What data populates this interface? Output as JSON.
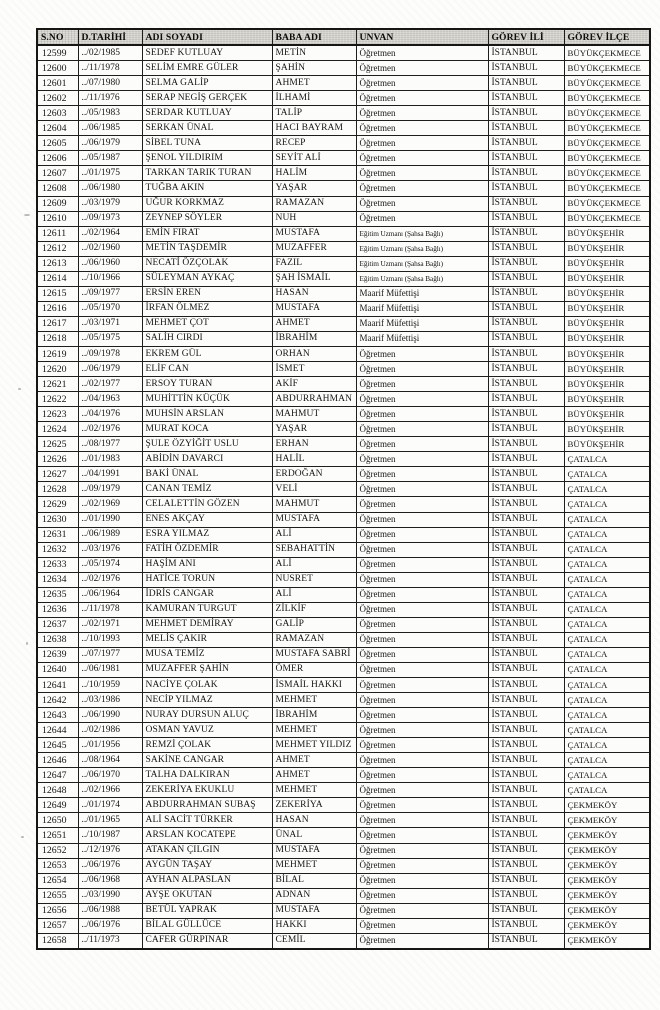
{
  "table": {
    "columns": [
      "S.NO",
      "D.TARİHİ",
      "ADI SOYADI",
      "BABA ADI",
      "UNVAN",
      "GÖREV İLİ",
      "GÖREV İLÇE"
    ],
    "rows": [
      [
        "12599",
        "../02/1985",
        "SEDEF KUTLUAY",
        "METİN",
        "Öğretmen",
        "İSTANBUL",
        "BÜYÜKÇEKMECE"
      ],
      [
        "12600",
        "../11/1978",
        "SELİM EMRE GÜLER",
        "ŞAHİN",
        "Öğretmen",
        "İSTANBUL",
        "BÜYÜKÇEKMECE"
      ],
      [
        "12601",
        "../07/1980",
        "SELMA GALİP",
        "AHMET",
        "Öğretmen",
        "İSTANBUL",
        "BÜYÜKÇEKMECE"
      ],
      [
        "12602",
        "../11/1976",
        "SERAP NEGİŞ GERÇEK",
        "İLHAMİ",
        "Öğretmen",
        "İSTANBUL",
        "BÜYÜKÇEKMECE"
      ],
      [
        "12603",
        "../05/1983",
        "SERDAR KUTLUAY",
        "TALİP",
        "Öğretmen",
        "İSTANBUL",
        "BÜYÜKÇEKMECE"
      ],
      [
        "12604",
        "../06/1985",
        "SERKAN ÜNAL",
        "HACI BAYRAM",
        "Öğretmen",
        "İSTANBUL",
        "BÜYÜKÇEKMECE"
      ],
      [
        "12605",
        "../06/1979",
        "SİBEL TUNA",
        "RECEP",
        "Öğretmen",
        "İSTANBUL",
        "BÜYÜKÇEKMECE"
      ],
      [
        "12606",
        "../05/1987",
        "ŞENOL YILDIRIM",
        "SEYİT ALİ",
        "Öğretmen",
        "İSTANBUL",
        "BÜYÜKÇEKMECE"
      ],
      [
        "12607",
        "../01/1975",
        "TARKAN TARIK TURAN",
        "HALİM",
        "Öğretmen",
        "İSTANBUL",
        "BÜYÜKÇEKMECE"
      ],
      [
        "12608",
        "../06/1980",
        "TUĞBA AKIN",
        "YAŞAR",
        "Öğretmen",
        "İSTANBUL",
        "BÜYÜKÇEKMECE"
      ],
      [
        "12609",
        "../03/1979",
        "UĞUR KORKMAZ",
        "RAMAZAN",
        "Öğretmen",
        "İSTANBUL",
        "BÜYÜKÇEKMECE"
      ],
      [
        "12610",
        "../09/1973",
        "ZEYNEP SÖYLER",
        "NUH",
        "Öğretmen",
        "İSTANBUL",
        "BÜYÜKÇEKMECE"
      ],
      [
        "12611",
        "../02/1964",
        "EMİN FIRAT",
        "MUSTAFA",
        "Eğitim Uzmanı (Şahsa Bağlı)",
        "İSTANBUL",
        "BÜYÜKŞEHİR"
      ],
      [
        "12612",
        "../02/1960",
        "METİN TAŞDEMİR",
        "MUZAFFER",
        "Eğitim Uzmanı (Şahsa Bağlı)",
        "İSTANBUL",
        "BÜYÜKŞEHİR"
      ],
      [
        "12613",
        "../06/1960",
        "NECATİ ÖZÇOLAK",
        "FAZIL",
        "Eğitim Uzmanı (Şahsa Bağlı)",
        "İSTANBUL",
        "BÜYÜKŞEHİR"
      ],
      [
        "12614",
        "../10/1966",
        "SÜLEYMAN AYKAÇ",
        "ŞAH İSMAİL",
        "Eğitim Uzmanı (Şahsa Bağlı)",
        "İSTANBUL",
        "BÜYÜKŞEHİR"
      ],
      [
        "12615",
        "../09/1977",
        "ERSİN EREN",
        "HASAN",
        "Maarif Müfettişi",
        "İSTANBUL",
        "BÜYÜKŞEHİR"
      ],
      [
        "12616",
        "../05/1970",
        "İRFAN ÖLMEZ",
        "MUSTAFA",
        "Maarif Müfettişi",
        "İSTANBUL",
        "BÜYÜKŞEHİR"
      ],
      [
        "12617",
        "../03/1971",
        "MEHMET ÇOT",
        "AHMET",
        "Maarif Müfettişi",
        "İSTANBUL",
        "BÜYÜKŞEHİR"
      ],
      [
        "12618",
        "../05/1975",
        "SALİH CIRDI",
        "İBRAHİM",
        "Maarif Müfettişi",
        "İSTANBUL",
        "BÜYÜKŞEHİR"
      ],
      [
        "12619",
        "../09/1978",
        "EKREM GÜL",
        "ORHAN",
        "Öğretmen",
        "İSTANBUL",
        "BÜYÜKŞEHİR"
      ],
      [
        "12620",
        "../06/1979",
        "ELİF CAN",
        "İSMET",
        "Öğretmen",
        "İSTANBUL",
        "BÜYÜKŞEHİR"
      ],
      [
        "12621",
        "../02/1977",
        "ERSOY TURAN",
        "AKİF",
        "Öğretmen",
        "İSTANBUL",
        "BÜYÜKŞEHİR"
      ],
      [
        "12622",
        "../04/1963",
        "MUHİTTİN KÜÇÜK",
        "ABDURRAHMAN",
        "Öğretmen",
        "İSTANBUL",
        "BÜYÜKŞEHİR"
      ],
      [
        "12623",
        "../04/1976",
        "MUHSİN ARSLAN",
        "MAHMUT",
        "Öğretmen",
        "İSTANBUL",
        "BÜYÜKŞEHİR"
      ],
      [
        "12624",
        "../02/1976",
        "MURAT KOCA",
        "YAŞAR",
        "Öğretmen",
        "İSTANBUL",
        "BÜYÜKŞEHİR"
      ],
      [
        "12625",
        "../08/1977",
        "ŞULE ÖZYİĞİT USLU",
        "ERHAN",
        "Öğretmen",
        "İSTANBUL",
        "BÜYÜKŞEHİR"
      ],
      [
        "12626",
        "../01/1983",
        "ABİDİN DAVARCI",
        "HALİL",
        "Öğretmen",
        "İSTANBUL",
        "ÇATALCA"
      ],
      [
        "12627",
        "../04/1991",
        "BAKİ ÜNAL",
        "ERDOĞAN",
        "Öğretmen",
        "İSTANBUL",
        "ÇATALCA"
      ],
      [
        "12628",
        "../09/1979",
        "CANAN TEMİZ",
        "VELİ",
        "Öğretmen",
        "İSTANBUL",
        "ÇATALCA"
      ],
      [
        "12629",
        "../02/1969",
        "CELALETTİN GÖZEN",
        "MAHMUT",
        "Öğretmen",
        "İSTANBUL",
        "ÇATALCA"
      ],
      [
        "12630",
        "../01/1990",
        "ENES AKÇAY",
        "MUSTAFA",
        "Öğretmen",
        "İSTANBUL",
        "ÇATALCA"
      ],
      [
        "12631",
        "../06/1989",
        "ESRA YILMAZ",
        "ALİ",
        "Öğretmen",
        "İSTANBUL",
        "ÇATALCA"
      ],
      [
        "12632",
        "../03/1976",
        "FATİH ÖZDEMİR",
        "SEBAHATTİN",
        "Öğretmen",
        "İSTANBUL",
        "ÇATALCA"
      ],
      [
        "12633",
        "../05/1974",
        "HAŞİM ANI",
        "ALİ",
        "Öğretmen",
        "İSTANBUL",
        "ÇATALCA"
      ],
      [
        "12634",
        "../02/1976",
        "HATİCE TORUN",
        "NUSRET",
        "Öğretmen",
        "İSTANBUL",
        "ÇATALCA"
      ],
      [
        "12635",
        "../06/1964",
        "İDRİS CANGAR",
        "ALİ",
        "Öğretmen",
        "İSTANBUL",
        "ÇATALCA"
      ],
      [
        "12636",
        "../11/1978",
        "KAMURAN TURGUT",
        "ZİLKİF",
        "Öğretmen",
        "İSTANBUL",
        "ÇATALCA"
      ],
      [
        "12637",
        "../02/1971",
        "MEHMET DEMİRAY",
        "GALİP",
        "Öğretmen",
        "İSTANBUL",
        "ÇATALCA"
      ],
      [
        "12638",
        "../10/1993",
        "MELİS ÇAKIR",
        "RAMAZAN",
        "Öğretmen",
        "İSTANBUL",
        "ÇATALCA"
      ],
      [
        "12639",
        "../07/1977",
        "MUSA TEMİZ",
        "MUSTAFA SABRİ",
        "Öğretmen",
        "İSTANBUL",
        "ÇATALCA"
      ],
      [
        "12640",
        "../06/1981",
        "MUZAFFER ŞAHİN",
        "ÖMER",
        "Öğretmen",
        "İSTANBUL",
        "ÇATALCA"
      ],
      [
        "12641",
        "../10/1959",
        "NACİYE ÇOLAK",
        "İSMAİL HAKKI",
        "Öğretmen",
        "İSTANBUL",
        "ÇATALCA"
      ],
      [
        "12642",
        "../03/1986",
        "NECİP YILMAZ",
        "MEHMET",
        "Öğretmen",
        "İSTANBUL",
        "ÇATALCA"
      ],
      [
        "12643",
        "../06/1990",
        "NURAY DURSUN ALUÇ",
        "İBRAHİM",
        "Öğretmen",
        "İSTANBUL",
        "ÇATALCA"
      ],
      [
        "12644",
        "../02/1986",
        "OSMAN YAVUZ",
        "MEHMET",
        "Öğretmen",
        "İSTANBUL",
        "ÇATALCA"
      ],
      [
        "12645",
        "../01/1956",
        "REMZİ ÇOLAK",
        "MEHMET YILDIZ",
        "Öğretmen",
        "İSTANBUL",
        "ÇATALCA"
      ],
      [
        "12646",
        "../08/1964",
        "SAKİNE CANGAR",
        "AHMET",
        "Öğretmen",
        "İSTANBUL",
        "ÇATALCA"
      ],
      [
        "12647",
        "../06/1970",
        "TALHA DALKIRAN",
        "AHMET",
        "Öğretmen",
        "İSTANBUL",
        "ÇATALCA"
      ],
      [
        "12648",
        "../02/1966",
        "ZEKERİYA EKUKLU",
        "MEHMET",
        "Öğretmen",
        "İSTANBUL",
        "ÇATALCA"
      ],
      [
        "12649",
        "../01/1974",
        "ABDURRAHMAN SUBAŞ",
        "ZEKERİYA",
        "Öğretmen",
        "İSTANBUL",
        "ÇEKMEKÖY"
      ],
      [
        "12650",
        "../01/1965",
        "ALİ SACİT TÜRKER",
        "HASAN",
        "Öğretmen",
        "İSTANBUL",
        "ÇEKMEKÖY"
      ],
      [
        "12651",
        "../10/1987",
        "ARSLAN KOCATEPE",
        "ÜNAL",
        "Öğretmen",
        "İSTANBUL",
        "ÇEKMEKÖY"
      ],
      [
        "12652",
        "../12/1976",
        "ATAKAN ÇILGIN",
        "MUSTAFA",
        "Öğretmen",
        "İSTANBUL",
        "ÇEKMEKÖY"
      ],
      [
        "12653",
        "../06/1976",
        "AYGÜN TAŞAY",
        "MEHMET",
        "Öğretmen",
        "İSTANBUL",
        "ÇEKMEKÖY"
      ],
      [
        "12654",
        "../06/1968",
        "AYHAN ALPASLAN",
        "BİLAL",
        "Öğretmen",
        "İSTANBUL",
        "ÇEKMEKÖY"
      ],
      [
        "12655",
        "../03/1990",
        "AYŞE OKUTAN",
        "ADNAN",
        "Öğretmen",
        "İSTANBUL",
        "ÇEKMEKÖY"
      ],
      [
        "12656",
        "../06/1988",
        "BETÜL YAPRAK",
        "MUSTAFA",
        "Öğretmen",
        "İSTANBUL",
        "ÇEKMEKÖY"
      ],
      [
        "12657",
        "../06/1976",
        "BİLAL GÜLLÜCE",
        "HAKKI",
        "Öğretmen",
        "İSTANBUL",
        "ÇEKMEKÖY"
      ],
      [
        "12658",
        "../11/1973",
        "CAFER GÜRPINAR",
        "CEMİL",
        "Öğretmen",
        "İSTANBUL",
        "ÇEKMEKÖY"
      ]
    ]
  },
  "colors": {
    "ink": "#161616",
    "border": "#1f1e1c",
    "header_bg": "#dddcd6",
    "page_bg": "#fdfdfc"
  }
}
